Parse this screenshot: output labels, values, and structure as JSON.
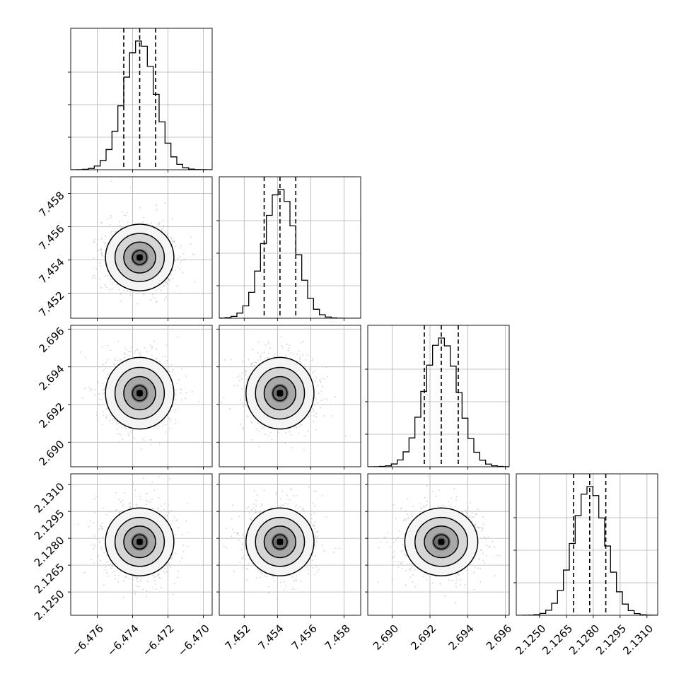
{
  "chart_data": {
    "type": "corner",
    "style": {
      "grid": true,
      "quantile_line_style": "dashed",
      "hist_color": "#000000",
      "point_color": "#c8c8c8",
      "contour_color": "#000000",
      "density_cmap": "greys"
    },
    "params": [
      {
        "range": [
          -6.4775,
          -6.4695
        ],
        "ticks": [
          -6.476,
          -6.474,
          -6.472,
          -6.47
        ],
        "tick_labels": [
          "−6.476",
          "−6.474",
          "−6.472",
          "−6.470"
        ],
        "mean": -6.4736,
        "sigma": 0.0009,
        "quantiles": [
          -6.4745,
          -6.4736,
          -6.4727
        ]
      },
      {
        "range": [
          7.4505,
          7.459
        ],
        "ticks": [
          7.452,
          7.454,
          7.456,
          7.458
        ],
        "tick_labels": [
          "7.452",
          "7.454",
          "7.456",
          "7.458"
        ],
        "mean": 7.45415,
        "sigma": 0.00095,
        "quantiles": [
          7.4532,
          7.45415,
          7.4551
        ]
      },
      {
        "range": [
          2.6887,
          2.6962
        ],
        "ticks": [
          2.69,
          2.692,
          2.694,
          2.696
        ],
        "tick_labels": [
          "2.690",
          "2.692",
          "2.694",
          "2.696"
        ],
        "mean": 2.6926,
        "sigma": 0.0009,
        "quantiles": [
          2.6917,
          2.6926,
          2.6935
        ]
      },
      {
        "range": [
          2.1237,
          2.1316
        ],
        "ticks": [
          2.125,
          2.1265,
          2.128,
          2.1295,
          2.131
        ],
        "tick_labels": [
          "2.1250",
          "2.1265",
          "2.1280",
          "2.1295",
          "2.1310"
        ],
        "mean": 2.1278,
        "sigma": 0.0009,
        "quantiles": [
          2.1269,
          2.1278,
          2.1287
        ]
      }
    ]
  }
}
